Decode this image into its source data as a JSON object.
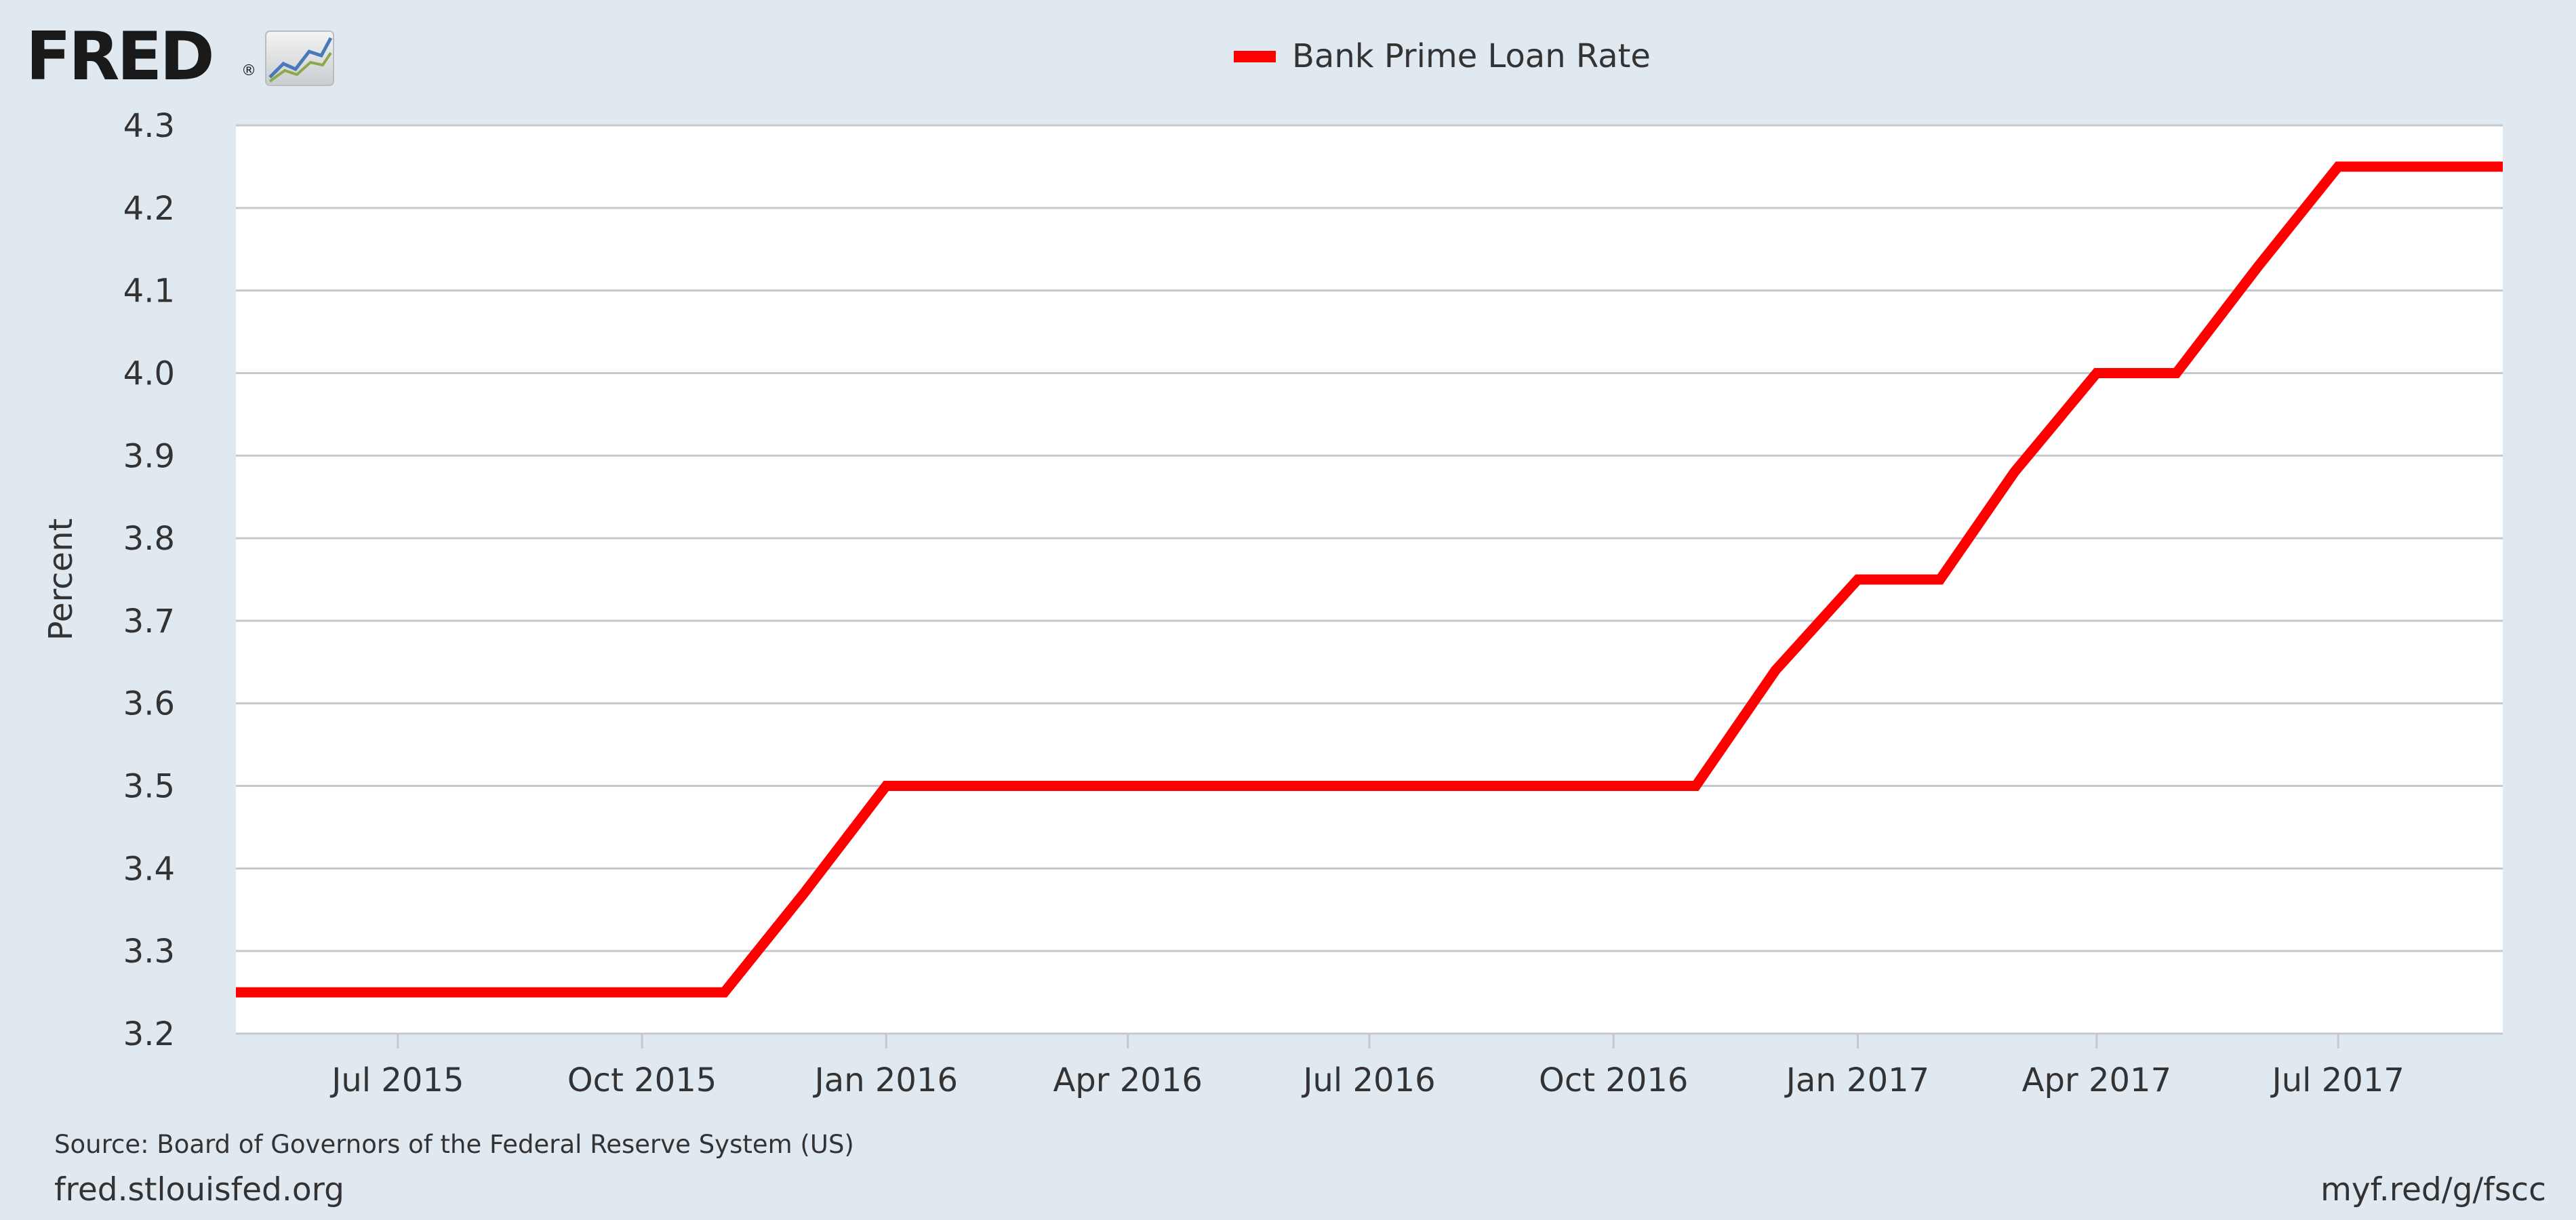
{
  "logo": {
    "text": "FRED",
    "registered": "®",
    "icon": "fred-graph-icon"
  },
  "colors": {
    "background": "#e1e9f0",
    "plot_background": "#ffffff",
    "grid": "#c4c9d0",
    "series": "#ff0000",
    "text": "#333333"
  },
  "chart_data": {
    "type": "line",
    "title": "",
    "xlabel": "",
    "ylabel": "Percent",
    "legend_position": "top-center",
    "grid": true,
    "xlim": [
      "2015-05-01",
      "2017-09-01"
    ],
    "ylim": [
      3.2,
      4.3
    ],
    "yticks": [
      3.2,
      3.3,
      3.4,
      3.5,
      3.6,
      3.7,
      3.8,
      3.9,
      4.0,
      4.1,
      4.2,
      4.3
    ],
    "xticks": [
      {
        "date": "2015-07-01",
        "label": "Jul 2015"
      },
      {
        "date": "2015-10-01",
        "label": "Oct 2015"
      },
      {
        "date": "2016-01-01",
        "label": "Jan 2016"
      },
      {
        "date": "2016-04-01",
        "label": "Apr 2016"
      },
      {
        "date": "2016-07-01",
        "label": "Jul 2016"
      },
      {
        "date": "2016-10-01",
        "label": "Oct 2016"
      },
      {
        "date": "2017-01-01",
        "label": "Jan 2017"
      },
      {
        "date": "2017-04-01",
        "label": "Apr 2017"
      },
      {
        "date": "2017-07-01",
        "label": "Jul 2017"
      }
    ],
    "series": [
      {
        "name": "Bank Prime Loan Rate",
        "x": [
          "2015-05-01",
          "2015-06-01",
          "2015-07-01",
          "2015-08-01",
          "2015-09-01",
          "2015-10-01",
          "2015-11-01",
          "2015-12-01",
          "2016-01-01",
          "2016-02-01",
          "2016-03-01",
          "2016-04-01",
          "2016-05-01",
          "2016-06-01",
          "2016-07-01",
          "2016-08-01",
          "2016-09-01",
          "2016-10-01",
          "2016-11-01",
          "2016-12-01",
          "2017-01-01",
          "2017-02-01",
          "2017-03-01",
          "2017-04-01",
          "2017-05-01",
          "2017-06-01",
          "2017-07-01",
          "2017-08-01",
          "2017-09-01"
        ],
        "y": [
          3.25,
          3.25,
          3.25,
          3.25,
          3.25,
          3.25,
          3.25,
          3.37,
          3.5,
          3.5,
          3.5,
          3.5,
          3.5,
          3.5,
          3.5,
          3.5,
          3.5,
          3.5,
          3.5,
          3.64,
          3.75,
          3.75,
          3.88,
          4.0,
          4.0,
          4.13,
          4.25,
          4.25,
          4.25
        ]
      }
    ]
  },
  "footer": {
    "source": "Source: Board of Governors of the Federal Reserve System (US)",
    "site": "fred.stlouisfed.org",
    "short_url": "myf.red/g/fscc"
  }
}
